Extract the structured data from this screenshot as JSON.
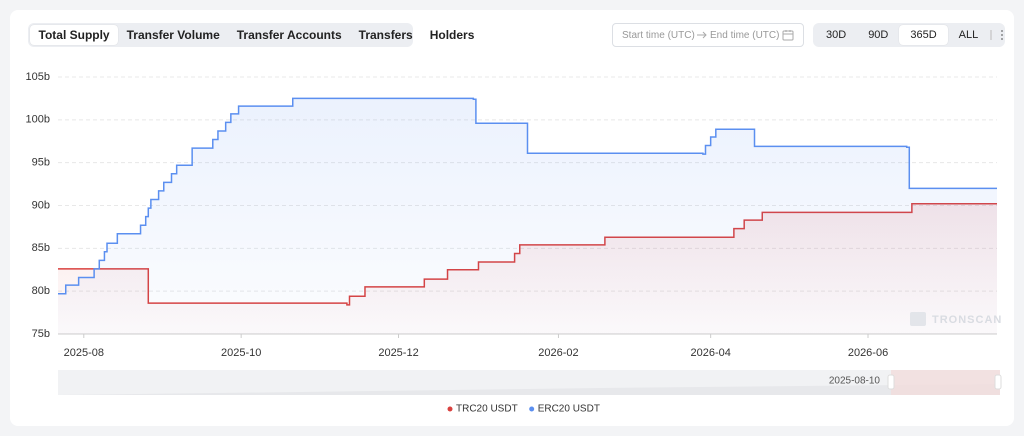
{
  "toolbar": {
    "tabs": [
      "Total Supply",
      "Transfer Volume",
      "Transfer Accounts",
      "Transfers",
      "Holders"
    ],
    "selected_tab": 0,
    "start_placeholder": "Start time (UTC)",
    "end_placeholder": "End time (UTC)",
    "ranges": [
      "30D",
      "90D",
      "365D",
      "ALL"
    ],
    "selected_range": 2
  },
  "chart_data": {
    "type": "line",
    "step": true,
    "grid": true,
    "watermark": "TRONSCAN",
    "zoom_label": "2025-08-10",
    "xlim": [
      "2025-07-22",
      "2026-07-21"
    ],
    "xticks": [
      "2025-08",
      "2025-10",
      "2025-12",
      "2026-02",
      "2026-04",
      "2026-06"
    ],
    "ylim": [
      75,
      105
    ],
    "yticks": [
      {
        "value": 75,
        "label": "75b"
      },
      {
        "value": 80,
        "label": "80b"
      },
      {
        "value": 85,
        "label": "85b"
      },
      {
        "value": 90,
        "label": "90b"
      },
      {
        "value": 95,
        "label": "95b"
      },
      {
        "value": 100,
        "label": "100b"
      },
      {
        "value": 105,
        "label": "105b"
      }
    ],
    "legend": "bottom",
    "series": [
      {
        "name": "TRC20 USDT",
        "color": "#d9413f",
        "x": [
          "2025-07-22",
          "2025-08-26",
          "2025-11-11",
          "2025-11-12",
          "2025-11-18",
          "2025-12-11",
          "2025-12-20",
          "2026-01-01",
          "2026-01-15",
          "2026-01-17",
          "2026-02-19",
          "2026-04-10",
          "2026-04-14",
          "2026-04-21",
          "2026-06-18",
          "2026-07-21"
        ],
        "values": [
          82.6,
          78.6,
          78.4,
          79.4,
          80.5,
          81.4,
          82.5,
          83.4,
          84.4,
          85.4,
          86.3,
          87.3,
          88.3,
          89.2,
          90.2,
          90.2
        ]
      },
      {
        "name": "ERC20 USDT",
        "color": "#5b8ff0",
        "x": [
          "2025-07-22",
          "2025-07-25",
          "2025-07-30",
          "2025-08-05",
          "2025-08-07",
          "2025-08-09",
          "2025-08-10",
          "2025-08-14",
          "2025-08-23",
          "2025-08-25",
          "2025-08-26",
          "2025-08-27",
          "2025-08-30",
          "2025-09-01",
          "2025-09-04",
          "2025-09-06",
          "2025-09-12",
          "2025-09-20",
          "2025-09-22",
          "2025-09-25",
          "2025-09-27",
          "2025-09-30",
          "2025-10-21",
          "2025-12-30",
          "2025-12-31",
          "2026-01-20",
          "2026-03-29",
          "2026-03-30",
          "2026-04-01",
          "2026-04-03",
          "2026-04-18",
          "2026-06-16",
          "2026-06-17",
          "2026-07-21"
        ],
        "values": [
          79.7,
          80.7,
          81.6,
          82.6,
          83.6,
          84.6,
          85.6,
          86.7,
          87.7,
          88.7,
          89.7,
          90.7,
          91.7,
          92.7,
          93.7,
          94.7,
          96.7,
          97.7,
          98.7,
          99.7,
          100.7,
          101.6,
          102.5,
          102.4,
          99.6,
          96.1,
          96.0,
          97.0,
          98.0,
          98.9,
          96.9,
          96.8,
          92.0,
          92.0
        ]
      }
    ]
  }
}
